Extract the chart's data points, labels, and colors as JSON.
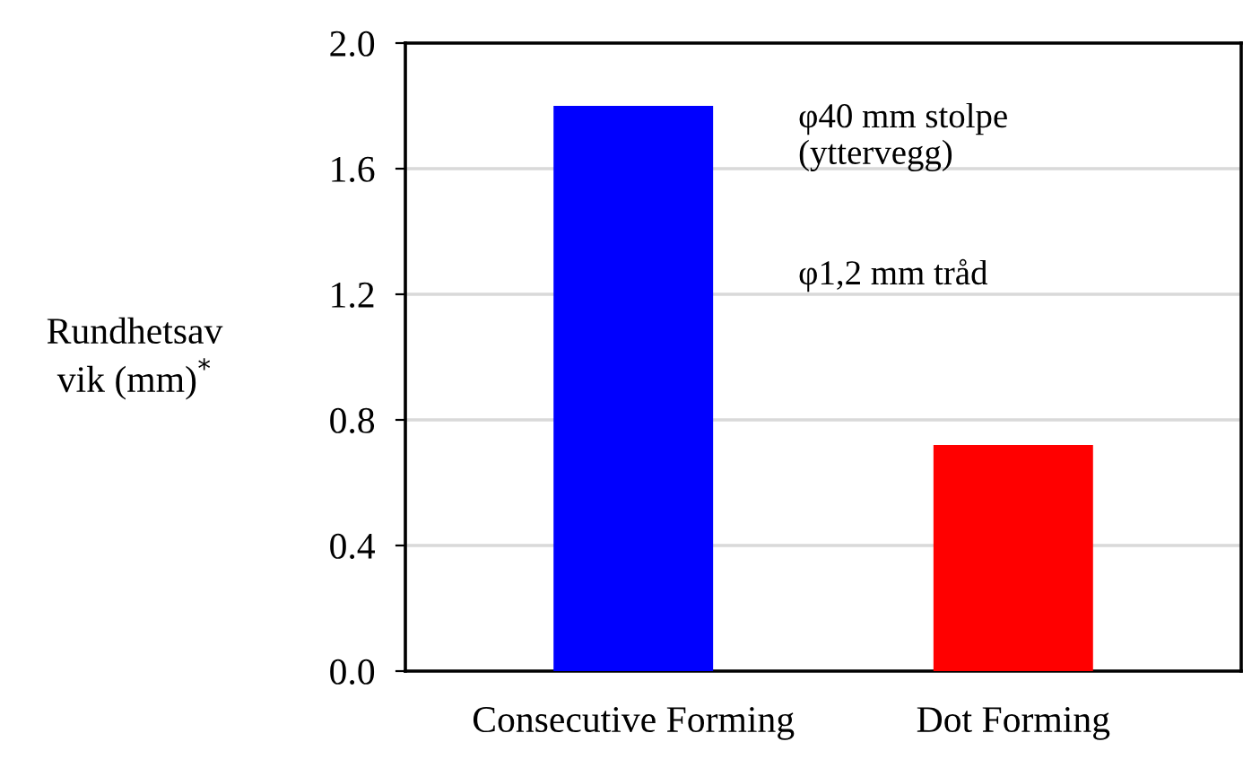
{
  "chart_data": {
    "type": "bar",
    "categories": [
      "Consecutive Forming",
      "Dot Forming"
    ],
    "values": [
      1.8,
      0.72
    ],
    "colors": [
      "#0000ff",
      "#ff0000"
    ],
    "ylabel": "Rundhetsav\nvik (mm)$^{*}$",
    "ylim": [
      0,
      2.0
    ],
    "yticks": [
      {
        "value": 0,
        "label": "0.0"
      },
      {
        "value": 0.4,
        "label": "0.4"
      },
      {
        "value": 0.8,
        "label": "0.8"
      },
      {
        "value": 1.2,
        "label": "1.2"
      },
      {
        "value": 1.6,
        "label": "1.6"
      },
      {
        "value": 2.0,
        "label": "2.0"
      }
    ],
    "grid": "y",
    "annotations": [
      "φ40 mm stolpe\n(yttervegg)",
      "φ1,2 mm tråd"
    ]
  }
}
